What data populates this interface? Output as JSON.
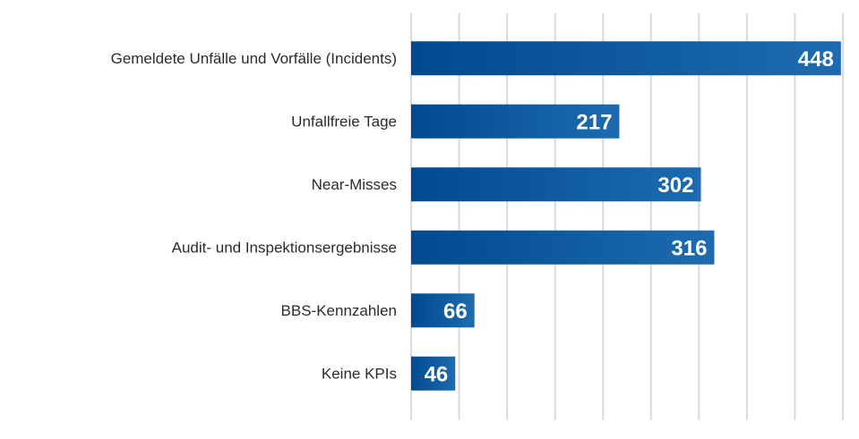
{
  "chart_data": {
    "type": "bar",
    "orientation": "horizontal",
    "categories": [
      "Gemeldete Unfälle und Vorfälle (Incidents)",
      "Unfallfreie Tage",
      "Near-Misses",
      "Audit- und Inspektionsergebnisse",
      "BBS-Kennzahlen",
      "Keine KPIs"
    ],
    "values": [
      448,
      217,
      302,
      316,
      66,
      46
    ],
    "xlim": [
      0,
      450
    ],
    "grid": true,
    "legend": false,
    "colors": {
      "bar_dark": "#004a8f",
      "bar_light": "#1e6bb0",
      "grid": "#d9d9d9",
      "label_text": "#2b2b2b",
      "value_text": "#ffffff"
    }
  }
}
